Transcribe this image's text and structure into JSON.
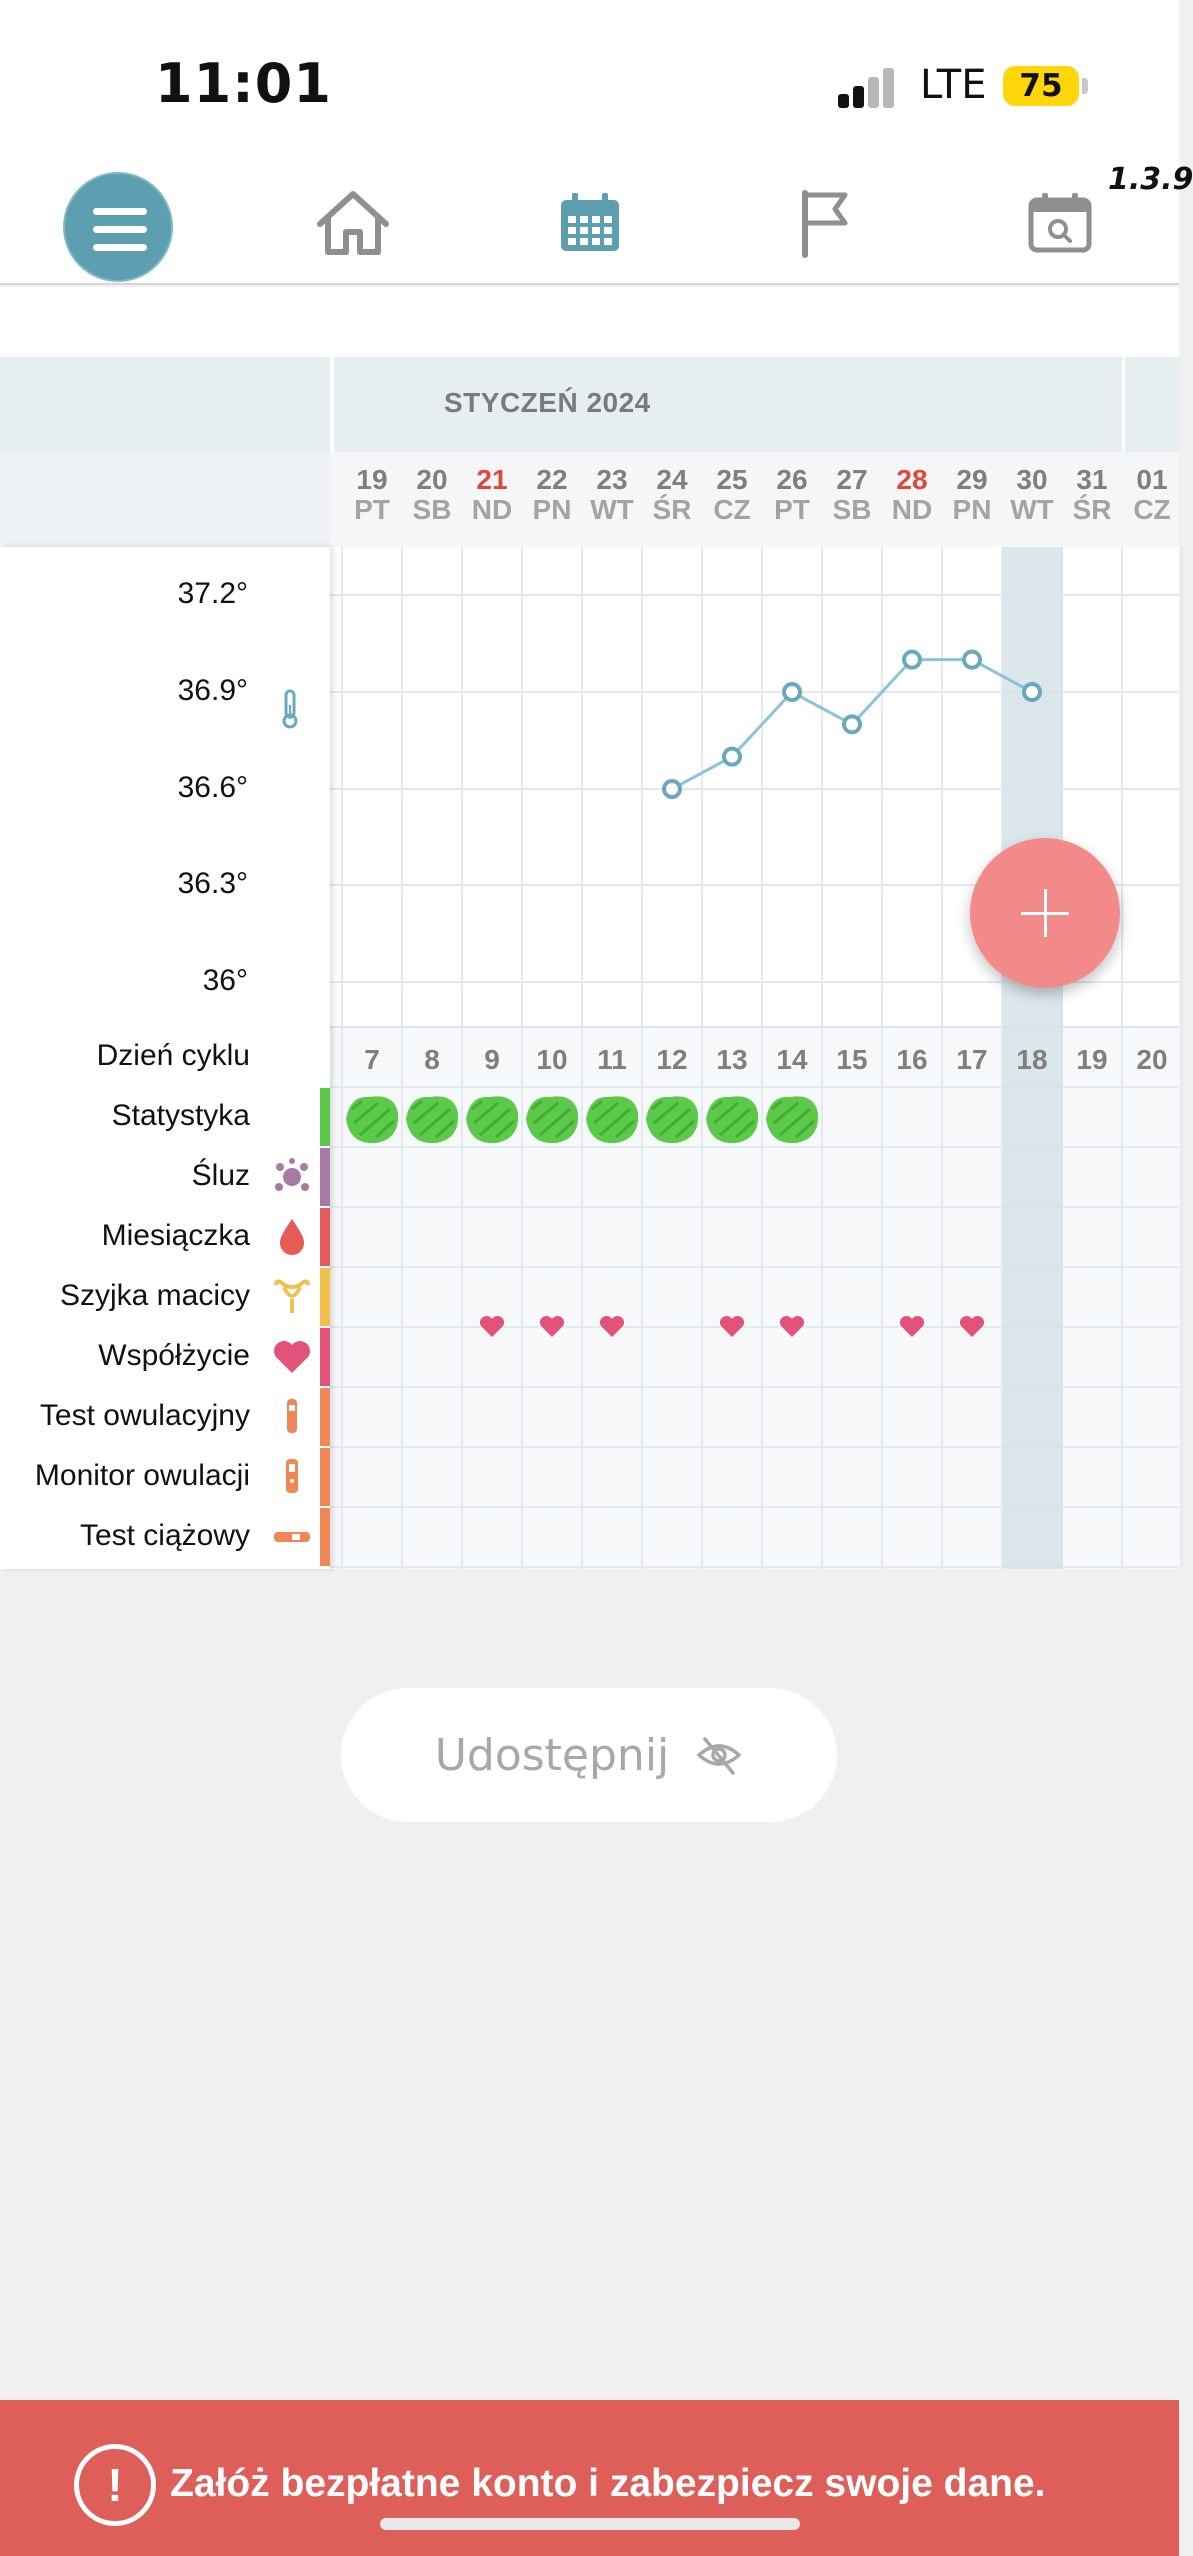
{
  "status_bar": {
    "time": "11:01",
    "network": "LTE",
    "battery": "75"
  },
  "app": {
    "version": "1.3.9"
  },
  "nav": {
    "items": [
      "menu-icon",
      "home-icon",
      "calendar-icon",
      "flag-icon",
      "calendar-search-icon"
    ],
    "active": "calendar-icon",
    "accent": "#5d9fb0"
  },
  "calendar": {
    "month": "STYCZEŃ 2024",
    "days": [
      {
        "num": "19",
        "dow": "PT"
      },
      {
        "num": "20",
        "dow": "SB"
      },
      {
        "num": "21",
        "dow": "ND",
        "red": true
      },
      {
        "num": "22",
        "dow": "PN"
      },
      {
        "num": "23",
        "dow": "WT"
      },
      {
        "num": "24",
        "dow": "ŚR"
      },
      {
        "num": "25",
        "dow": "CZ"
      },
      {
        "num": "26",
        "dow": "PT"
      },
      {
        "num": "27",
        "dow": "SB"
      },
      {
        "num": "28",
        "dow": "ND",
        "red": true
      },
      {
        "num": "29",
        "dow": "PN"
      },
      {
        "num": "30",
        "dow": "WT",
        "selected": true
      },
      {
        "num": "31",
        "dow": "ŚR"
      },
      {
        "num": "01",
        "dow": "CZ"
      }
    ],
    "temperature_axis": [
      "37.2°",
      "36.9°",
      "36.6°",
      "36.3°",
      "36°"
    ],
    "temperature_readings": [
      {
        "day": "24",
        "temp": 36.6
      },
      {
        "day": "25",
        "temp": 36.7
      },
      {
        "day": "26",
        "temp": 36.9
      },
      {
        "day": "27",
        "temp": 36.8
      },
      {
        "day": "28",
        "temp": 37.0
      },
      {
        "day": "29",
        "temp": 37.0
      },
      {
        "day": "30",
        "temp": 36.9
      }
    ],
    "cycle_label": "Dzień cyklu",
    "cycle_days": [
      "7",
      "8",
      "9",
      "10",
      "11",
      "12",
      "13",
      "14",
      "15",
      "16",
      "17",
      "18",
      "19",
      "20"
    ],
    "rows": [
      {
        "label": "Statystyka",
        "icon": "statistics",
        "color": "#5cc94a"
      },
      {
        "label": "Śluz",
        "icon": "mucus-icon",
        "color": "#a77aa3"
      },
      {
        "label": "Miesiączka",
        "icon": "blood-drop-icon",
        "color": "#e45c55"
      },
      {
        "label": "Szyjka macicy",
        "icon": "uterus-icon",
        "color": "#f2c04f"
      },
      {
        "label": "Współżycie",
        "icon": "heart-icon",
        "color": "#e2527a"
      },
      {
        "label": "Test owulacyjny",
        "icon": "ovulation-test-icon",
        "color": "#f08855"
      },
      {
        "label": "Monitor owulacji",
        "icon": "ovulation-monitor-icon",
        "color": "#f08855"
      },
      {
        "label": "Test ciążowy",
        "icon": "pregnancy-test-icon",
        "color": "#f08855"
      }
    ],
    "statistics_marked_days": [
      "19",
      "20",
      "21",
      "22",
      "23",
      "24",
      "25",
      "26"
    ],
    "intercourse_days": [
      "21",
      "22",
      "23",
      "25",
      "26",
      "28",
      "29"
    ]
  },
  "share": {
    "label": "Udostępnij",
    "icon": "eye-off-icon"
  },
  "banner": {
    "text": "Załóż bezpłatne konto i zabezpiecz swoje dane.",
    "icon_text": "!",
    "color": "#de5e5a"
  }
}
